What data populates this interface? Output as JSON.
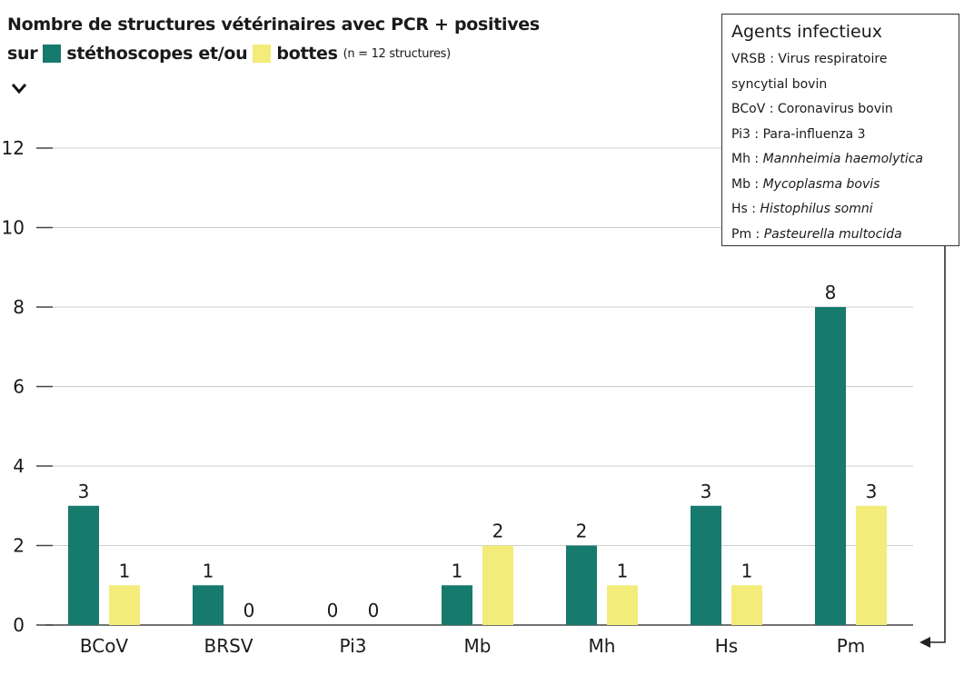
{
  "title": {
    "line1": "Nombre de structures vétérinaires avec PCR + positives",
    "line2_prefix": "sur",
    "series1_label": "stéthoscopes et/ou",
    "series2_label": "bottes",
    "note": "(n = 12 structures)"
  },
  "legend_box": {
    "title": "Agents infectieux",
    "items": [
      {
        "abbr": "VRSB",
        "name": "Virus respiratoire",
        "italic": false
      },
      {
        "abbr": "",
        "name": "syncytial bovin",
        "italic": false,
        "continuation": true
      },
      {
        "abbr": "BCoV",
        "name": "Coronavirus bovin",
        "italic": false
      },
      {
        "abbr": "Pi3",
        "name": "Para-influenza 3",
        "italic": false
      },
      {
        "abbr": "Mh",
        "name": "Mannheimia haemolytica",
        "italic": true
      },
      {
        "abbr": "Mb",
        "name": "Mycoplasma bovis",
        "italic": true
      },
      {
        "abbr": "Hs",
        "name": "Histophilus somni",
        "italic": true
      },
      {
        "abbr": "Pm",
        "name": "Pasteurella multocida",
        "italic": true
      }
    ]
  },
  "colors": {
    "stethoscopes": "#167a6d",
    "bottes": "#f3ec7a",
    "grid": "#cccccc",
    "axis": "#444444"
  },
  "chart_data": {
    "type": "bar",
    "categories": [
      "BCoV",
      "BRSV",
      "Pi3",
      "Mb",
      "Mh",
      "Hs",
      "Pm"
    ],
    "series": [
      {
        "name": "stéthoscopes et/ou",
        "color_key": "stethoscopes",
        "values": [
          3,
          1,
          0,
          1,
          2,
          3,
          8
        ]
      },
      {
        "name": "bottes",
        "color_key": "bottes",
        "values": [
          1,
          0,
          0,
          2,
          1,
          1,
          3
        ]
      }
    ],
    "ylim": [
      0,
      12
    ],
    "yticks": [
      0,
      2,
      4,
      6,
      8,
      10,
      12
    ],
    "grid": true,
    "data_labels": true
  }
}
